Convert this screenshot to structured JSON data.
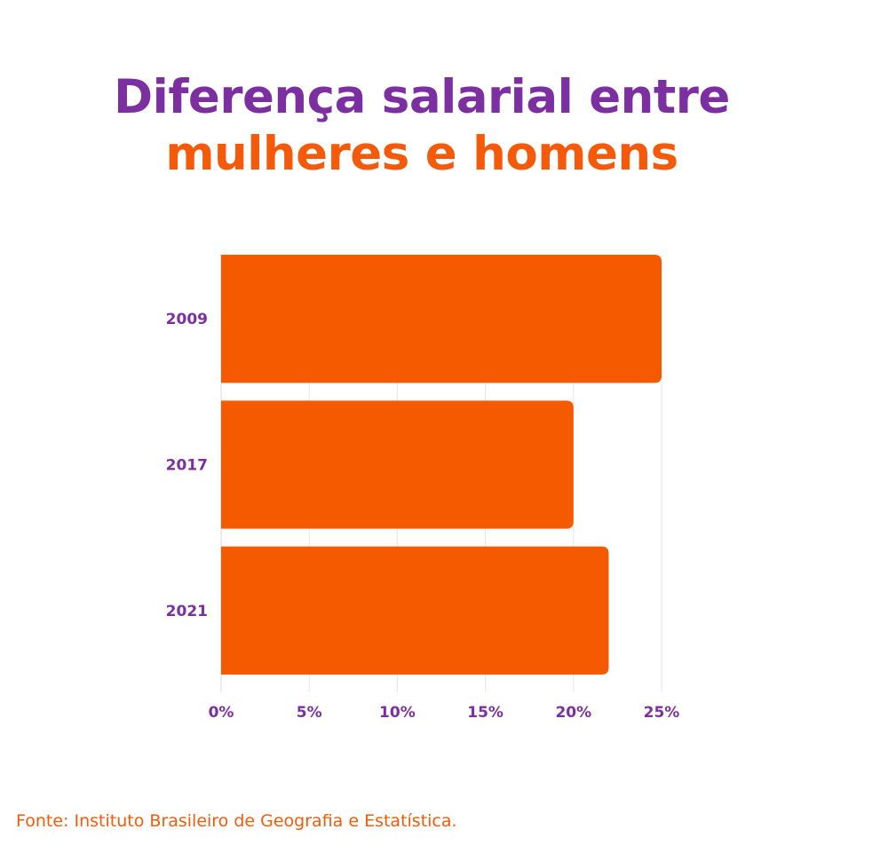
{
  "title": {
    "line1": "Diferença salarial entre",
    "line2": "mulheres e homens"
  },
  "source": "Fonte: Instituto Brasileiro de Geografia e Estatística.",
  "colors": {
    "title_purple": "#7c2fa0",
    "accent_orange": "#f55a0a",
    "bar": "#f55a00",
    "grid": "#e6e6e6",
    "axis_label": "#7c2fa0"
  },
  "chart_data": {
    "type": "bar",
    "orientation": "horizontal",
    "categories": [
      "2009",
      "2017",
      "2021"
    ],
    "values": [
      25,
      20,
      22
    ],
    "xlim": [
      0,
      25
    ],
    "xticks": [
      "0%",
      "5%",
      "10%",
      "15%",
      "20%",
      "25%"
    ],
    "tick_values": [
      0,
      5,
      10,
      15,
      20,
      25
    ],
    "grid": true
  }
}
